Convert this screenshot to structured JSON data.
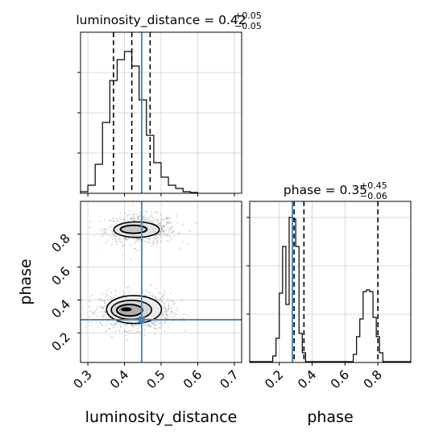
{
  "chart_data": {
    "type": "corner",
    "truth_color": "#4682b4",
    "panels": {
      "hist_lum": {
        "type": "histogram",
        "title_param": "luminosity_distance = 0.42",
        "title_sup": "+0.05",
        "title_sub": "−0.05",
        "xlim": [
          0.28,
          0.72
        ],
        "ylim": [
          0,
          1.0
        ],
        "bins": [
          {
            "x0": 0.28,
            "x1": 0.3,
            "h": 0.01
          },
          {
            "x0": 0.3,
            "x1": 0.32,
            "h": 0.05
          },
          {
            "x0": 0.32,
            "x1": 0.34,
            "h": 0.18
          },
          {
            "x0": 0.34,
            "x1": 0.36,
            "h": 0.44
          },
          {
            "x0": 0.36,
            "x1": 0.38,
            "h": 0.7
          },
          {
            "x0": 0.38,
            "x1": 0.4,
            "h": 0.83
          },
          {
            "x0": 0.4,
            "x1": 0.42,
            "h": 0.88
          },
          {
            "x0": 0.42,
            "x1": 0.44,
            "h": 0.79
          },
          {
            "x0": 0.44,
            "x1": 0.46,
            "h": 0.58
          },
          {
            "x0": 0.46,
            "x1": 0.48,
            "h": 0.36
          },
          {
            "x0": 0.48,
            "x1": 0.5,
            "h": 0.19
          },
          {
            "x0": 0.5,
            "x1": 0.52,
            "h": 0.1
          },
          {
            "x0": 0.52,
            "x1": 0.54,
            "h": 0.05
          },
          {
            "x0": 0.54,
            "x1": 0.56,
            "h": 0.03
          },
          {
            "x0": 0.56,
            "x1": 0.58,
            "h": 0.01
          },
          {
            "x0": 0.58,
            "x1": 0.6,
            "h": 0.005
          }
        ],
        "quantile_lines": [
          0.37,
          0.42,
          0.47
        ],
        "truth_x": 0.447
      },
      "hist_phase": {
        "type": "histogram",
        "title_param": "phase = 0.35",
        "title_sup": "+0.45",
        "title_sub": "−0.06",
        "xlim": [
          0.02,
          1.0
        ],
        "ylim": [
          0,
          1.0
        ],
        "bins": [
          {
            "x0": 0.02,
            "x1": 0.16,
            "h": 0.005
          },
          {
            "x0": 0.16,
            "x1": 0.18,
            "h": 0.04
          },
          {
            "x0": 0.18,
            "x1": 0.2,
            "h": 0.15
          },
          {
            "x0": 0.2,
            "x1": 0.22,
            "h": 0.43
          },
          {
            "x0": 0.22,
            "x1": 0.24,
            "h": 0.72
          },
          {
            "x0": 0.24,
            "x1": 0.26,
            "h": 0.36
          },
          {
            "x0": 0.26,
            "x1": 0.28,
            "h": 0.9
          },
          {
            "x0": 0.28,
            "x1": 0.3,
            "h": 0.89
          },
          {
            "x0": 0.3,
            "x1": 0.32,
            "h": 0.72
          },
          {
            "x0": 0.32,
            "x1": 0.34,
            "h": 0.18
          },
          {
            "x0": 0.34,
            "x1": 0.36,
            "h": 0.06
          },
          {
            "x0": 0.36,
            "x1": 0.65,
            "h": 0.005
          },
          {
            "x0": 0.65,
            "x1": 0.67,
            "h": 0.05
          },
          {
            "x0": 0.67,
            "x1": 0.69,
            "h": 0.16
          },
          {
            "x0": 0.69,
            "x1": 0.71,
            "h": 0.27
          },
          {
            "x0": 0.71,
            "x1": 0.73,
            "h": 0.44
          },
          {
            "x0": 0.73,
            "x1": 0.75,
            "h": 0.45
          },
          {
            "x0": 0.75,
            "x1": 0.77,
            "h": 0.44
          },
          {
            "x0": 0.77,
            "x1": 0.79,
            "h": 0.28
          },
          {
            "x0": 0.79,
            "x1": 0.81,
            "h": 0.16
          },
          {
            "x0": 0.81,
            "x1": 0.83,
            "h": 0.06
          },
          {
            "x0": 0.83,
            "x1": 1.0,
            "h": 0.005
          }
        ],
        "quantile_lines": [
          0.29,
          0.35,
          0.8
        ],
        "truth_x": 0.28
      },
      "scatter": {
        "type": "scatter+contour",
        "xlim": [
          0.28,
          0.72
        ],
        "ylim": [
          0.02,
          1.0
        ],
        "clusters": [
          {
            "cx": 0.445,
            "cy": 0.83,
            "sx": 0.048,
            "sy": 0.045,
            "n": 700
          },
          {
            "cx": 0.43,
            "cy": 0.33,
            "sx": 0.048,
            "sy": 0.055,
            "n": 1100
          }
        ],
        "contours": [
          {
            "cx": 0.433,
            "cy": 0.828,
            "rx": 0.062,
            "ry": 0.047,
            "fill": "#e2e2e2",
            "width": 1.6
          },
          {
            "cx": 0.425,
            "cy": 0.83,
            "rx": 0.036,
            "ry": 0.024,
            "fill": "#c4c4c4",
            "width": 2.0
          },
          {
            "cx": 0.426,
            "cy": 0.342,
            "rx": 0.075,
            "ry": 0.085,
            "fill": "#ececec",
            "width": 1.6
          },
          {
            "cx": 0.419,
            "cy": 0.34,
            "rx": 0.055,
            "ry": 0.058,
            "fill": "#d4d4d4",
            "width": 1.6
          },
          {
            "cx": 0.414,
            "cy": 0.338,
            "rx": 0.035,
            "ry": 0.035,
            "fill": "#a8a8a8",
            "width": 2.0
          }
        ],
        "dense_core": {
          "cx": 0.405,
          "cy": 0.343,
          "rx": 0.015,
          "ry": 0.012
        },
        "truth": {
          "x": 0.447,
          "y": 0.28
        }
      }
    },
    "axes": {
      "lum_ticks": [
        "0.3",
        "0.4",
        "0.5",
        "0.6",
        "0.7"
      ],
      "lum_tick_values": [
        0.3,
        0.4,
        0.5,
        0.6,
        0.7
      ],
      "phase_ticks": [
        "0.2",
        "0.4",
        "0.6",
        "0.8"
      ],
      "phase_tick_values": [
        0.2,
        0.4,
        0.6,
        0.8
      ],
      "xlabel_left": "luminosity_distance",
      "xlabel_right": "phase",
      "ylabel": "phase"
    }
  }
}
